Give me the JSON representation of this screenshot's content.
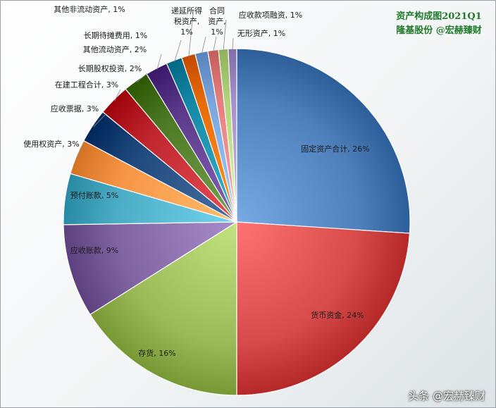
{
  "chart_data": {
    "type": "pie",
    "title": "资产构成图2021Q1",
    "subtitle": "隆基股份 @宏赫臻财",
    "slices": [
      {
        "name": "固定资产合计",
        "value_label": "26%",
        "value": 26.3,
        "color": "#4f81bd"
      },
      {
        "name": "货币资金",
        "value_label": "24%",
        "value": 24.2,
        "color": "#d84b4b"
      },
      {
        "name": "存货",
        "value_label": "16%",
        "value": 16.2,
        "color": "#9bbb59"
      },
      {
        "name": "应收账款",
        "value_label": "9%",
        "value": 8.8,
        "color": "#8064a2"
      },
      {
        "name": "预付账款",
        "value_label": "5%",
        "value": 4.8,
        "color": "#4bacc6"
      },
      {
        "name": "使用权资产",
        "value_label": "3%",
        "value": 3.3,
        "color": "#f79646"
      },
      {
        "name": "应收票据",
        "value_label": "3%",
        "value": 3.2,
        "color": "#1f497d"
      },
      {
        "name": "在建工程合计",
        "value_label": "3%",
        "value": 3.0,
        "color": "#c0262d"
      },
      {
        "name": "长期股权投资",
        "value_label": "2%",
        "value": 2.4,
        "color": "#4e7a25"
      },
      {
        "name": "其他流动资产",
        "value_label": "2%",
        "value": 2.1,
        "color": "#5c3b8c"
      },
      {
        "name": "长期待摊费用",
        "value_label": "1%",
        "value": 1.5,
        "color": "#168ba8"
      },
      {
        "name": "其他非流动资产",
        "value_label": "1%",
        "value": 1.3,
        "color": "#e86d0a"
      },
      {
        "name": "递延所得税资产",
        "value_label": "1%",
        "value": 1.2,
        "color": "#7aa6dd"
      },
      {
        "name": "合同资产",
        "value_label": "1%",
        "value": 1.0,
        "color": "#e67f7f"
      },
      {
        "name": "应收款项融资",
        "value_label": "1%",
        "value": 0.9,
        "color": "#b3d47c"
      },
      {
        "name": "无形资产",
        "value_label": "1%",
        "value": 0.8,
        "color": "#a590c8"
      }
    ]
  },
  "watermark": "头条 @宏赫臻财"
}
